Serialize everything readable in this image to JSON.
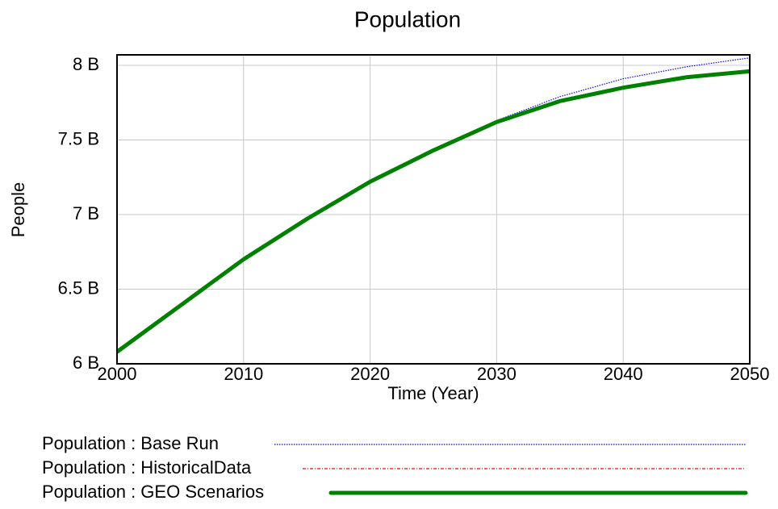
{
  "chart_data": {
    "type": "line",
    "title": "Population",
    "x_label": "Time (Year)",
    "y_label": "People",
    "x": [
      2000,
      2005,
      2010,
      2015,
      2020,
      2025,
      2030,
      2035,
      2040,
      2045,
      2050
    ],
    "series": [
      {
        "name": "Population : Base Run",
        "color": "#0000ff",
        "style": "dotted",
        "values": [
          6080000000.0,
          6390000000.0,
          6700000000.0,
          6970000000.0,
          7220000000.0,
          7430000000.0,
          7630000000.0,
          7790000000.0,
          7910000000.0,
          7990000000.0,
          8050000000.0
        ]
      },
      {
        "name": "Population : HistoricalData",
        "color": "#ff0000",
        "style": "dashdot",
        "values": [
          null,
          null,
          null,
          null,
          null,
          null,
          null,
          null,
          null,
          null,
          null
        ]
      },
      {
        "name": "Population : GEO Scenarios",
        "color": "#008000",
        "style": "solid",
        "values": [
          6080000000.0,
          6390000000.0,
          6700000000.0,
          6970000000.0,
          7220000000.0,
          7430000000.0,
          7620000000.0,
          7760000000.0,
          7850000000.0,
          7920000000.0,
          7960000000.0
        ]
      }
    ],
    "xlim": [
      2000,
      2050
    ],
    "xticks": [
      2000,
      2010,
      2020,
      2030,
      2040,
      2050
    ],
    "ylim": [
      6000000000.0,
      8070000000.0
    ],
    "yticks": [
      {
        "value": 6000000000.0,
        "label": "6 B"
      },
      {
        "value": 6500000000.0,
        "label": "6.5 B"
      },
      {
        "value": 7000000000.0,
        "label": "7 B"
      },
      {
        "value": 7500000000.0,
        "label": "7.5 B"
      },
      {
        "value": 8000000000.0,
        "label": "8 B"
      }
    ],
    "grid": true
  }
}
